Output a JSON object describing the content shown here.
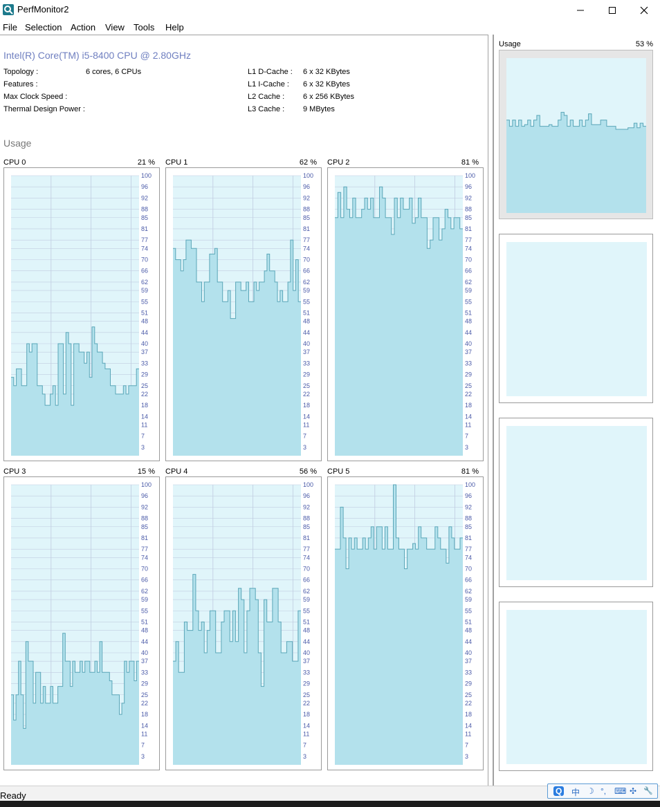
{
  "window": {
    "title": "PerfMonitor2"
  },
  "menu": [
    "File",
    "Selection",
    "Action",
    "View",
    "Tools",
    "Help"
  ],
  "cpu": {
    "name": "Intel(R) Core(TM) i5-8400 CPU @ 2.80GHz",
    "left_info": [
      {
        "label": "Topology :",
        "value": "6 cores, 6 CPUs"
      },
      {
        "label": "Features :",
        "value": ""
      },
      {
        "label": "Max Clock Speed :",
        "value": ""
      },
      {
        "label": "Thermal Design Power :",
        "value": ""
      }
    ],
    "right_info": [
      {
        "label": "L1 D-Cache :",
        "value": "6 x 32 KBytes"
      },
      {
        "label": "L1 I-Cache :",
        "value": "6 x 32 KBytes"
      },
      {
        "label": "L2 Cache :",
        "value": "6 x 256 KBytes"
      },
      {
        "label": "L3 Cache :",
        "value": "9 MBytes"
      }
    ]
  },
  "usage_heading": "Usage",
  "axis_ticks": [
    "100",
    "96",
    "92",
    "88",
    "85",
    "81",
    "77",
    "74",
    "70",
    "66",
    "62",
    "59",
    "55",
    "51",
    "48",
    "44",
    "40",
    "37",
    "33",
    "29",
    "25",
    "22",
    "18",
    "14",
    "11",
    "7",
    "3"
  ],
  "colors": {
    "graph_bg": "#e0f5fa",
    "graph_fill": "#b3e1ec",
    "graph_line": "#5aa6b8",
    "grid": "#c0cce0",
    "tick_text": "#4a5aa8"
  },
  "chart_data": [
    {
      "type": "area",
      "title": "CPU 0",
      "value_label": "21 %",
      "ylim": [
        0,
        100
      ],
      "values": [
        28,
        25,
        31,
        31,
        25,
        25,
        40,
        37,
        40,
        40,
        25,
        25,
        22,
        18,
        18,
        22,
        25,
        18,
        40,
        40,
        22,
        44,
        40,
        18,
        40,
        40,
        37,
        37,
        33,
        37,
        28,
        46,
        40,
        37,
        37,
        33,
        31,
        31,
        25,
        25,
        22,
        22,
        22,
        25,
        22,
        25,
        25,
        25,
        31
      ]
    },
    {
      "type": "area",
      "title": "CPU 1",
      "value_label": "62 %",
      "ylim": [
        0,
        100
      ],
      "values": [
        74,
        70,
        70,
        66,
        70,
        77,
        77,
        74,
        74,
        62,
        62,
        55,
        62,
        62,
        72,
        72,
        74,
        62,
        62,
        55,
        55,
        59,
        49,
        49,
        62,
        62,
        59,
        59,
        62,
        55,
        55,
        62,
        59,
        62,
        62,
        66,
        72,
        66,
        66,
        62,
        55,
        59,
        55,
        55,
        62,
        77,
        59,
        70,
        55
      ]
    },
    {
      "type": "area",
      "title": "CPU 2",
      "value_label": "81 %",
      "ylim": [
        0,
        100
      ],
      "values": [
        85,
        94,
        85,
        96,
        88,
        85,
        92,
        85,
        85,
        88,
        92,
        88,
        92,
        85,
        85,
        96,
        92,
        85,
        85,
        79,
        92,
        85,
        92,
        88,
        88,
        92,
        83,
        85,
        92,
        85,
        85,
        74,
        77,
        85,
        85,
        77,
        81,
        88,
        85,
        81,
        85,
        85,
        81
      ]
    },
    {
      "type": "area",
      "title": "CPU 3",
      "value_label": "15 %",
      "ylim": [
        0,
        100
      ],
      "values": [
        25,
        16,
        25,
        37,
        25,
        13,
        44,
        37,
        37,
        22,
        33,
        33,
        22,
        28,
        22,
        22,
        28,
        22,
        22,
        28,
        28,
        47,
        37,
        37,
        28,
        37,
        33,
        33,
        37,
        33,
        37,
        37,
        33,
        33,
        37,
        33,
        44,
        33,
        33,
        33,
        30,
        25,
        25,
        25,
        18,
        22,
        37,
        33,
        37,
        37,
        30,
        37
      ]
    },
    {
      "type": "area",
      "title": "CPU 4",
      "value_label": "56 %",
      "ylim": [
        0,
        100
      ],
      "values": [
        37,
        44,
        33,
        33,
        51,
        48,
        48,
        68,
        55,
        48,
        51,
        40,
        48,
        55,
        55,
        40,
        40,
        51,
        55,
        55,
        44,
        55,
        44,
        63,
        59,
        40,
        55,
        63,
        63,
        59,
        40,
        28,
        59,
        51,
        51,
        63,
        63,
        51,
        40,
        40,
        44,
        44,
        37,
        37,
        55
      ]
    },
    {
      "type": "area",
      "title": "CPU 5",
      "value_label": "81 %",
      "ylim": [
        0,
        100
      ],
      "values": [
        77,
        77,
        92,
        81,
        70,
        81,
        77,
        81,
        77,
        77,
        81,
        77,
        81,
        85,
        77,
        85,
        85,
        77,
        85,
        77,
        77,
        100,
        81,
        77,
        77,
        70,
        77,
        77,
        79,
        77,
        85,
        81,
        81,
        77,
        77,
        77,
        85,
        81,
        77,
        77,
        72,
        85,
        81,
        77,
        77,
        81
      ]
    },
    {
      "type": "area",
      "title": "Usage",
      "value_label": "53 %",
      "ylim": [
        0,
        100
      ],
      "values": [
        60,
        56,
        60,
        56,
        60,
        56,
        57,
        60,
        56,
        60,
        63,
        56,
        56,
        56,
        57,
        56,
        56,
        60,
        65,
        63,
        56,
        60,
        56,
        56,
        60,
        56,
        60,
        64,
        57,
        57,
        57,
        60,
        60,
        56,
        56,
        56,
        54,
        54,
        54,
        54,
        55,
        55,
        58,
        55,
        58,
        56
      ]
    }
  ],
  "status": "Ready",
  "ime": {
    "q": "Q",
    "zh": "中",
    "moon": "☽",
    "punct": "°,",
    "keyboard": "⌨",
    "tool1": "✣",
    "wrench": "🔧"
  }
}
